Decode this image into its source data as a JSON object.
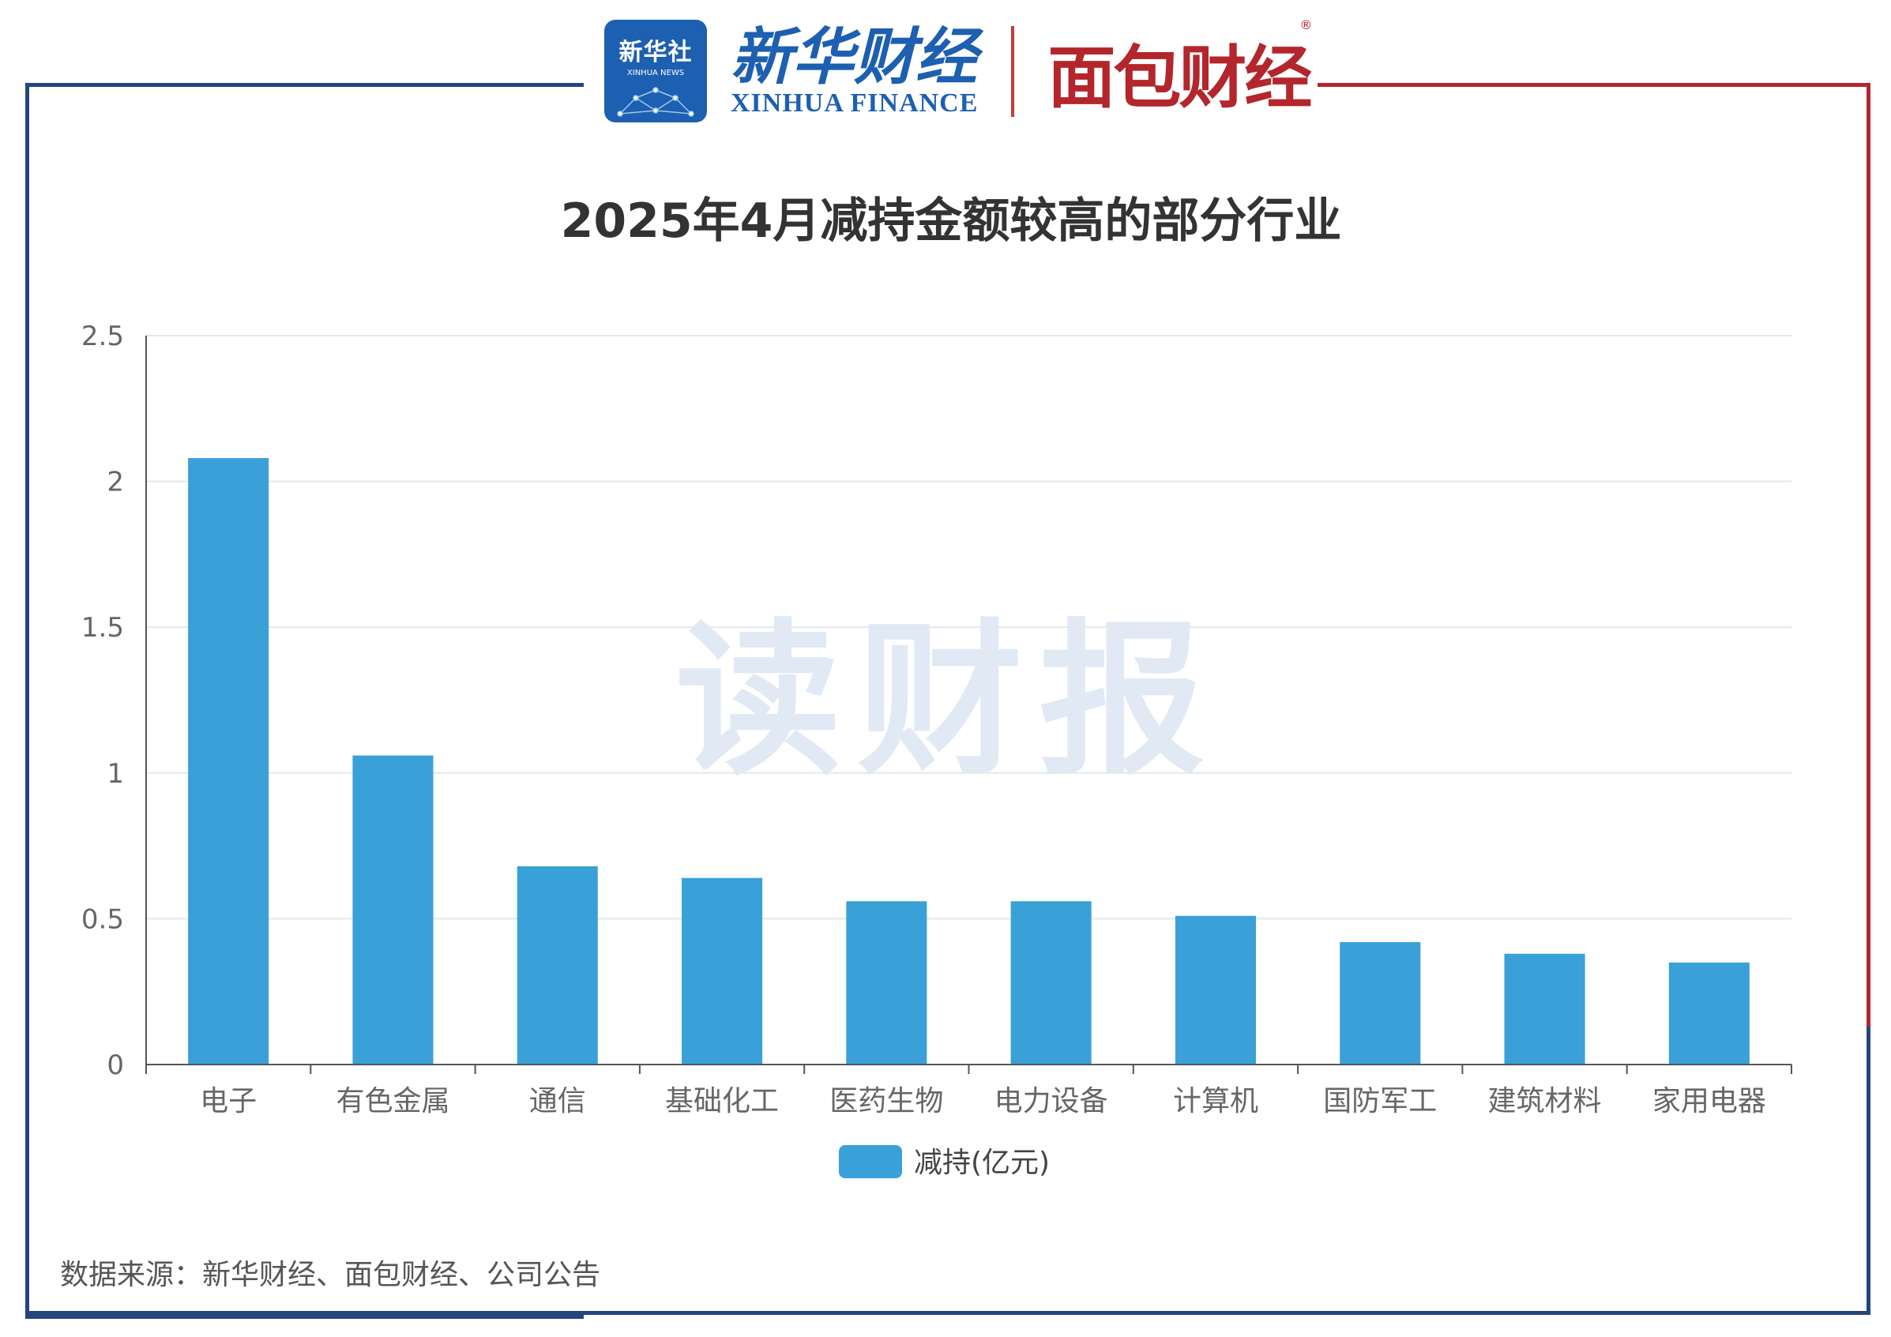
{
  "header": {
    "xinhua_badge_cn": "新华社",
    "xinhua_badge_en": "XINHUA NEWS",
    "xinhua_finance_cn": "新华财经",
    "xinhua_finance_en": "XINHUA FINANCE",
    "mianbao_logo": "面包财经",
    "registered_mark": "®"
  },
  "watermark": "读财报",
  "source": "数据来源：新华财经、面包财经、公司公告",
  "colors": {
    "bar": "#3aa0d8",
    "frame_blue": "#24457e",
    "frame_red": "#b3262b"
  },
  "chart_data": {
    "type": "bar",
    "title": "2025年4月减持金额较高的部分行业",
    "categories": [
      "电子",
      "有色金属",
      "通信",
      "基础化工",
      "医药生物",
      "电力设备",
      "计算机",
      "国防军工",
      "建筑材料",
      "家用电器"
    ],
    "series": [
      {
        "name": "减持(亿元)",
        "values": [
          2.08,
          1.06,
          0.68,
          0.64,
          0.56,
          0.56,
          0.51,
          0.42,
          0.38,
          0.35
        ]
      }
    ],
    "y_ticks": [
      "0",
      "0.5",
      "1",
      "1.5",
      "2",
      "2.5"
    ],
    "ylim": [
      0,
      2.5
    ],
    "xlabel": "",
    "ylabel": "",
    "grid": true,
    "legend_position": "bottom"
  }
}
